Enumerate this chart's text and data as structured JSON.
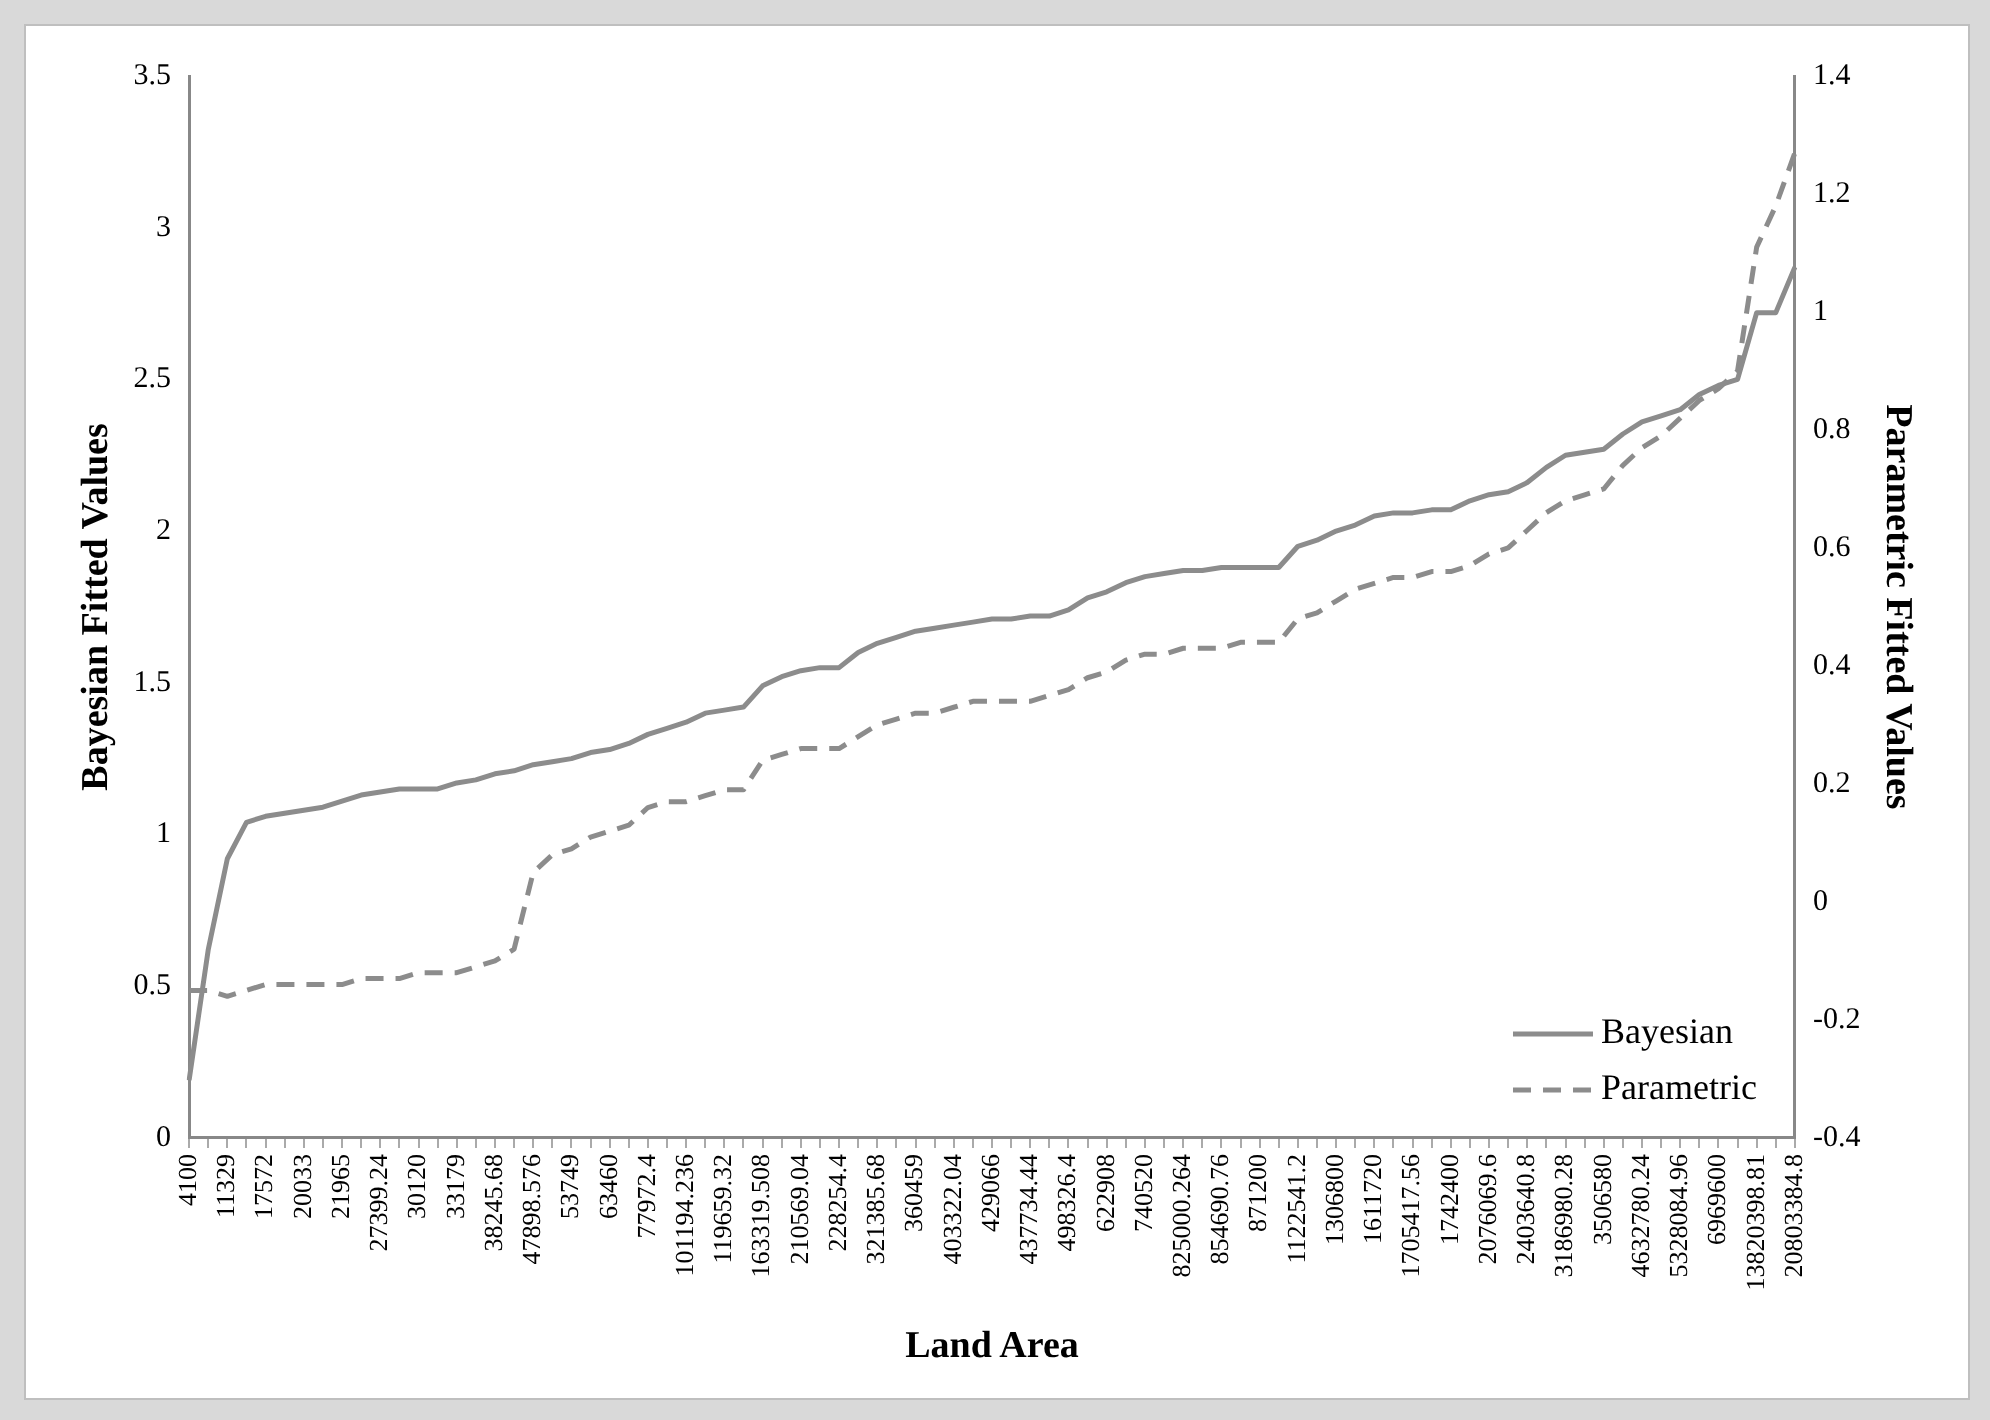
{
  "chart_data": {
    "type": "line",
    "xlabel": "Land Area",
    "ylabel": "Bayesian Fitted Values",
    "y2label": "Parametric Fitted Values",
    "categories": [
      "4100",
      null,
      "11329",
      null,
      "17572",
      null,
      "20033",
      null,
      "21965",
      null,
      "27399.24",
      null,
      "30120",
      null,
      "33179",
      null,
      "38245.68",
      null,
      "47898.576",
      null,
      "53749",
      null,
      "63460",
      null,
      "77972.4",
      null,
      "101194.236",
      null,
      "119659.32",
      null,
      "163319.508",
      null,
      "210569.04",
      null,
      "228254.4",
      null,
      "321385.68",
      null,
      "360459",
      null,
      "403322.04",
      null,
      "429066",
      null,
      "437734.44",
      null,
      "498326.4",
      null,
      "622908",
      null,
      "740520",
      null,
      "825000.264",
      null,
      "854690.76",
      null,
      "871200",
      null,
      "1122541.2",
      null,
      "1306800",
      null,
      "1611720",
      null,
      "1705417.56",
      null,
      "1742400",
      null,
      "2076069.6",
      null,
      "2403640.8",
      null,
      "3186980.28",
      null,
      "3506580",
      null,
      "4632780.24",
      null,
      "5328084.96",
      null,
      "6969600",
      null,
      "13820398.81",
      null,
      "20803384.8"
    ],
    "series": [
      {
        "name": "Bayesian",
        "color": "#8c8c8c",
        "line_style": "solid",
        "values": [
          0.19,
          0.62,
          0.92,
          1.04,
          1.06,
          1.07,
          1.08,
          1.09,
          1.11,
          1.13,
          1.14,
          1.15,
          1.15,
          1.15,
          1.17,
          1.18,
          1.2,
          1.21,
          1.23,
          1.24,
          1.25,
          1.27,
          1.28,
          1.3,
          1.33,
          1.35,
          1.37,
          1.4,
          1.41,
          1.42,
          1.49,
          1.52,
          1.54,
          1.55,
          1.55,
          1.6,
          1.63,
          1.65,
          1.67,
          1.68,
          1.69,
          1.7,
          1.71,
          1.71,
          1.72,
          1.72,
          1.74,
          1.78,
          1.8,
          1.83,
          1.85,
          1.86,
          1.87,
          1.87,
          1.88,
          1.88,
          1.88,
          1.88,
          1.95,
          1.97,
          2.0,
          2.02,
          2.05,
          2.06,
          2.06,
          2.07,
          2.07,
          2.1,
          2.12,
          2.13,
          2.16,
          2.21,
          2.25,
          2.26,
          2.27,
          2.32,
          2.36,
          2.38,
          2.4,
          2.45,
          2.48,
          2.5,
          2.72,
          2.72,
          2.87
        ]
      },
      {
        "name": "Parametric",
        "color": "#8c8c8c",
        "line_style": "dashed",
        "axis": "y2",
        "values": [
          -0.15,
          -0.15,
          -0.16,
          -0.15,
          -0.14,
          -0.14,
          -0.14,
          -0.14,
          -0.14,
          -0.13,
          -0.13,
          -0.13,
          -0.12,
          -0.12,
          -0.12,
          -0.11,
          -0.1,
          -0.08,
          0.05,
          0.08,
          0.09,
          0.11,
          0.12,
          0.13,
          0.16,
          0.17,
          0.17,
          0.18,
          0.19,
          0.19,
          0.24,
          0.25,
          0.26,
          0.26,
          0.26,
          0.28,
          0.3,
          0.31,
          0.32,
          0.32,
          0.33,
          0.34,
          0.34,
          0.34,
          0.34,
          0.35,
          0.36,
          0.38,
          0.39,
          0.41,
          0.42,
          0.42,
          0.43,
          0.43,
          0.43,
          0.44,
          0.44,
          0.44,
          0.48,
          0.49,
          0.51,
          0.53,
          0.54,
          0.55,
          0.55,
          0.56,
          0.56,
          0.57,
          0.59,
          0.6,
          0.63,
          0.66,
          0.68,
          0.69,
          0.7,
          0.74,
          0.77,
          0.79,
          0.82,
          0.85,
          0.87,
          0.9,
          1.11,
          1.18,
          1.27
        ]
      }
    ],
    "ylim": [
      0,
      3.5
    ],
    "yticks": [
      0,
      0.5,
      1,
      1.5,
      2,
      2.5,
      3,
      3.5
    ],
    "y2lim": [
      -0.4,
      1.4
    ],
    "y2ticks": [
      -0.4,
      -0.2,
      0,
      0.2,
      0.4,
      0.6,
      0.8,
      1,
      1.2,
      1.4
    ],
    "grid": false,
    "legend": "bottom right",
    "marker": "none"
  }
}
